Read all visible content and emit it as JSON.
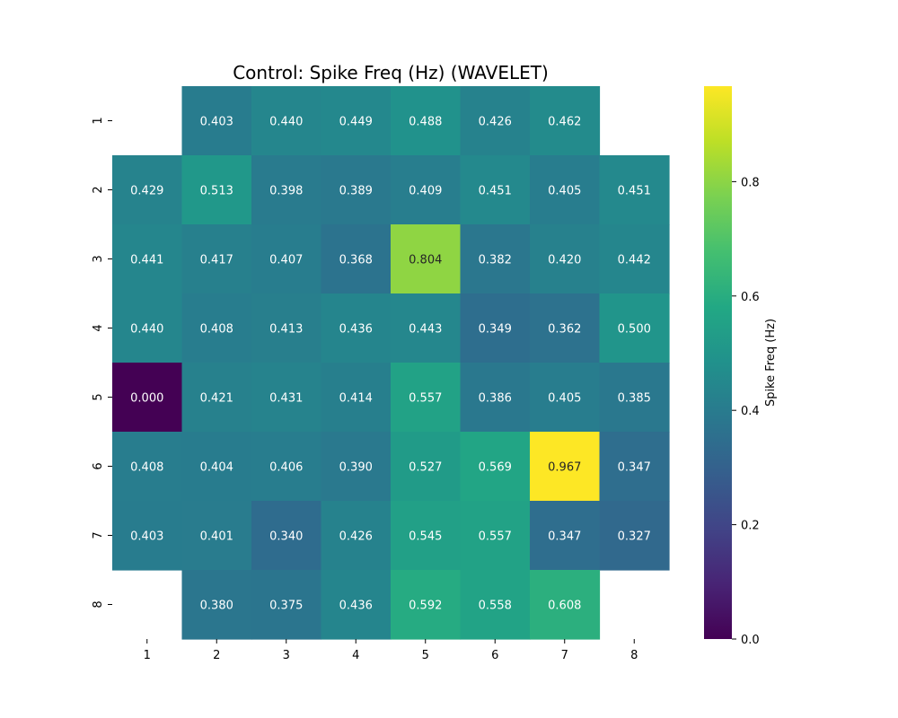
{
  "chart_data": {
    "type": "heatmap",
    "title": "Control: Spike Freq (Hz) (WAVELET)",
    "x_tick_labels": [
      "1",
      "2",
      "3",
      "4",
      "5",
      "6",
      "7",
      "8"
    ],
    "y_tick_labels": [
      "1",
      "2",
      "3",
      "4",
      "5",
      "6",
      "7",
      "8"
    ],
    "values": [
      [
        null,
        0.403,
        0.44,
        0.449,
        0.488,
        0.426,
        0.462,
        null
      ],
      [
        0.429,
        0.513,
        0.398,
        0.389,
        0.409,
        0.451,
        0.405,
        0.451
      ],
      [
        0.441,
        0.417,
        0.407,
        0.368,
        0.804,
        0.382,
        0.42,
        0.442
      ],
      [
        0.44,
        0.408,
        0.413,
        0.436,
        0.443,
        0.349,
        0.362,
        0.5
      ],
      [
        0.0,
        0.421,
        0.431,
        0.414,
        0.557,
        0.386,
        0.405,
        0.385
      ],
      [
        0.408,
        0.404,
        0.406,
        0.39,
        0.527,
        0.569,
        0.967,
        0.347
      ],
      [
        0.403,
        0.401,
        0.34,
        0.426,
        0.545,
        0.557,
        0.347,
        0.327
      ],
      [
        null,
        0.38,
        0.375,
        0.436,
        0.592,
        0.558,
        0.608,
        null
      ]
    ],
    "value_format": "3 decimals",
    "colormap": "viridis",
    "vmin": 0.0,
    "vmax": 0.967,
    "colorbar": {
      "label": "Spike Freq (Hz)",
      "ticks": [
        0.0,
        0.2,
        0.4,
        0.6,
        0.8
      ],
      "tick_labels": [
        "0.0",
        "0.2",
        "0.4",
        "0.6",
        "0.8"
      ]
    }
  }
}
